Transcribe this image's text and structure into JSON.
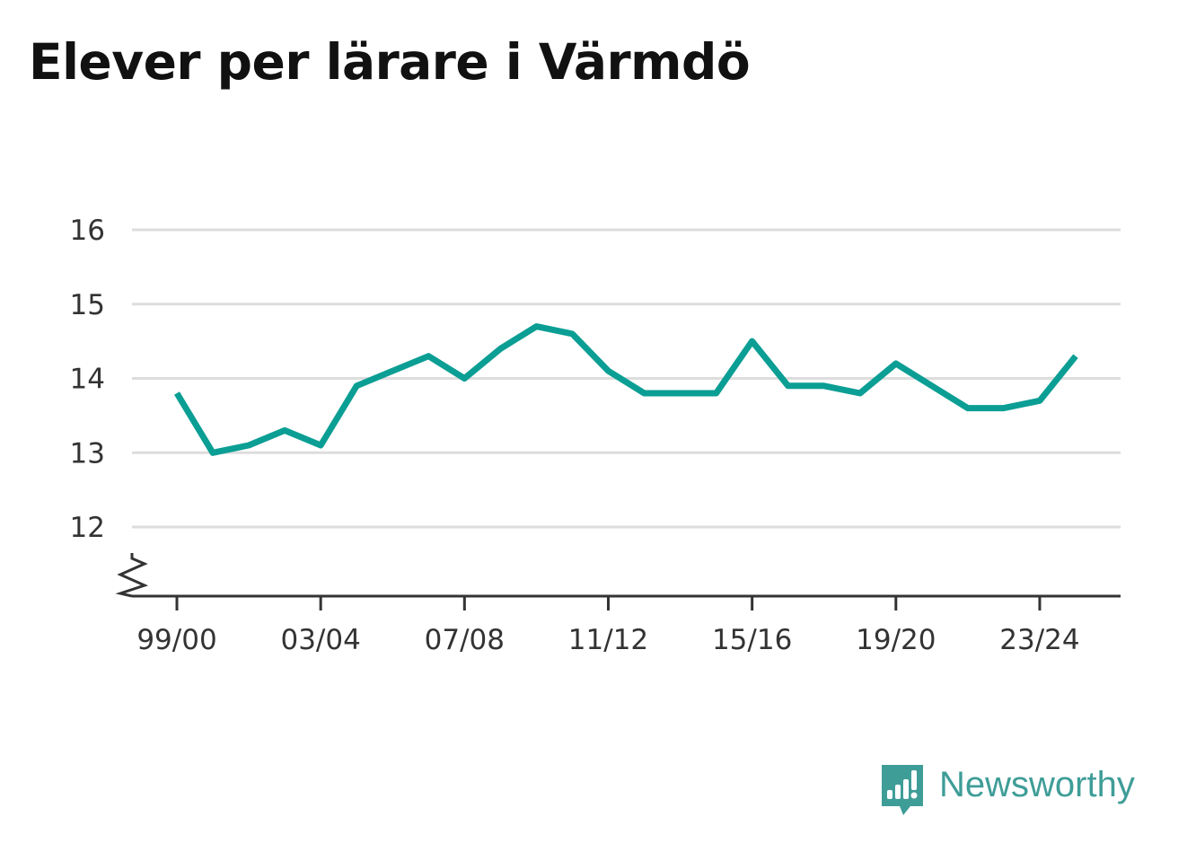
{
  "title": "Elever per lärare i Värmdö",
  "brand": {
    "name": "Newsworthy",
    "color": "#3f9d98"
  },
  "colors": {
    "line": "#0b9e94",
    "grid": "#dddddd",
    "axis": "#333333"
  },
  "chart_data": {
    "type": "line",
    "title": "Elever per lärare i Värmdö",
    "xlabel": "",
    "ylabel": "",
    "x": [
      "99/00",
      "00/01",
      "01/02",
      "02/03",
      "03/04",
      "04/05",
      "05/06",
      "06/07",
      "07/08",
      "08/09",
      "09/10",
      "10/11",
      "11/12",
      "12/13",
      "13/14",
      "14/15",
      "15/16",
      "16/17",
      "17/18",
      "18/19",
      "19/20",
      "20/21",
      "21/22",
      "22/23",
      "23/24",
      "24/25"
    ],
    "x_tick_labels": [
      "99/00",
      "03/04",
      "07/08",
      "11/12",
      "15/16",
      "19/20",
      "23/24"
    ],
    "y_tick_labels": [
      "12",
      "13",
      "14",
      "15",
      "16"
    ],
    "ylim": [
      12,
      16
    ],
    "axis_break": true,
    "grid": true,
    "series": [
      {
        "values": [
          13.8,
          13.0,
          13.1,
          13.3,
          13.1,
          13.9,
          14.1,
          14.3,
          14.0,
          14.4,
          14.7,
          14.6,
          14.1,
          13.8,
          13.8,
          13.8,
          14.5,
          13.9,
          13.9,
          13.8,
          14.2,
          13.9,
          13.6,
          13.6,
          13.7,
          14.3
        ]
      }
    ]
  }
}
